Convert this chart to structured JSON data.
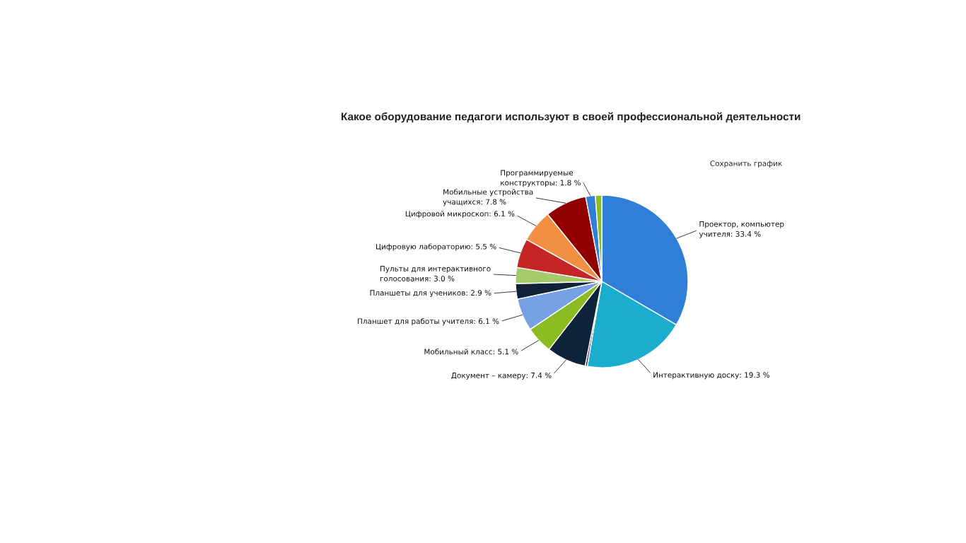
{
  "chart_data": {
    "type": "pie",
    "title": "Какое оборудование педагоги используют в своей профессиональной деятельности",
    "categories": [
      "Проектор, компьютер учителя",
      "Интерактивную доску",
      null,
      "Документ – камеру",
      "Мобильный класс",
      "Планшет для работы учителя",
      "Планшеты для учеников",
      "Пульты для интерактивного голосования",
      "Цифровую лабораторию",
      "Цифровой микроскоп",
      "Мобильные устройства учащихся",
      "Программируемые конструкторы",
      null
    ],
    "values": [
      33.4,
      19.3,
      0.4,
      7.4,
      5.1,
      6.1,
      2.9,
      3.0,
      5.5,
      6.1,
      7.8,
      1.8,
      1.2
    ],
    "value_labels": [
      "33.4 %",
      "19.3 %",
      null,
      "7.4 %",
      "5.1 %",
      "6.1 %",
      "2.9 %",
      "3.0 %",
      "5.5 %",
      "6.1 %",
      "7.8 %",
      "1.8 %",
      null
    ],
    "colors": [
      "#2f7ed8",
      "#1aadce",
      "#492970",
      "#0d233a",
      "#8bbc21",
      "#77a1e5",
      "#0f2238",
      "#a6c96a",
      "#c42525",
      "#f28f43",
      "#910000",
      "#2f7ed8",
      "#8bbc21"
    ],
    "annotations": [
      "Сохранить график"
    ]
  }
}
